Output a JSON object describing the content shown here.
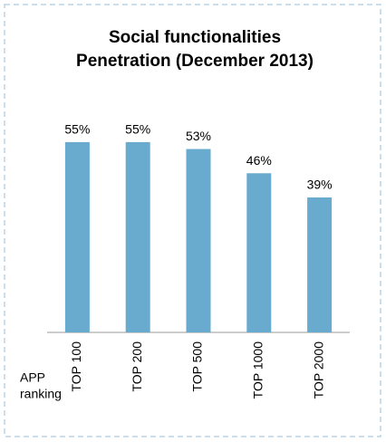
{
  "chart_data": {
    "type": "bar",
    "title": [
      "Social functionalities",
      "Penetration (December 2013)"
    ],
    "x_label": [
      "APP",
      "ranking"
    ],
    "categories": [
      "TOP 100",
      "TOP 200",
      "TOP 500",
      "TOP 1000",
      "TOP 2000"
    ],
    "values": [
      55,
      55,
      53,
      46,
      39
    ],
    "value_labels": [
      "55%",
      "55%",
      "53%",
      "46%",
      "39%"
    ],
    "color": "#68abce"
  }
}
